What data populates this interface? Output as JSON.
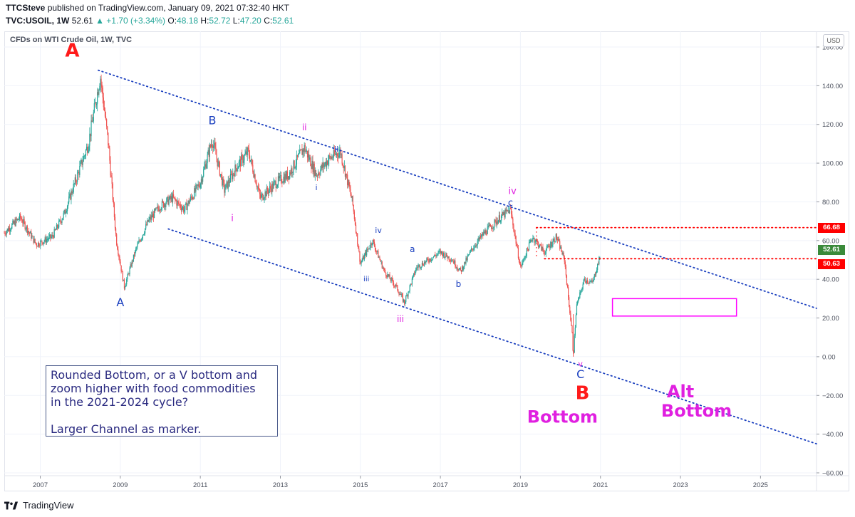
{
  "header": {
    "publisher": "TTCSteve",
    "published_text": "published on TradingView.com, January 09, 2021 07:32:40 HKT",
    "symbol": "TVC:USOIL, 1W",
    "last": "52.61",
    "change": "+1.70 (+3.34%)",
    "open_label": "O:",
    "open": "48.18",
    "high_label": "H:",
    "high": "52.72",
    "low_label": "L:",
    "low": "47.20",
    "close_label": "C:",
    "close": "52.61"
  },
  "chart_title": "CFDs on WTI Crude Oil, 1W, TVC",
  "currency_button": "USD",
  "footer_brand": "TradingView",
  "note": {
    "line1": "Rounded Bottom, or a V bottom and",
    "line2": "zoom higher with food commodities",
    "line3": "in the 2021-2024 cycle?",
    "line4": "Larger Channel as marker."
  },
  "chart_data": {
    "type": "candlestick-line",
    "x_ticks": [
      "2007",
      "2009",
      "2011",
      "2013",
      "2015",
      "2017",
      "2019",
      "2021",
      "2023",
      "2025"
    ],
    "y_ticks": [
      "160.00",
      "140.00",
      "120.00",
      "100.00",
      "80.00",
      "60.00",
      "40.00",
      "20.00",
      "0.00",
      "-20.00",
      "-40.00",
      "-60.00"
    ],
    "ylim": [
      -60,
      160
    ],
    "xlim": [
      2006.1,
      2026.4
    ],
    "price_path": [
      [
        2006.1,
        64
      ],
      [
        2006.5,
        72
      ],
      [
        2006.9,
        58
      ],
      [
        2007.3,
        62
      ],
      [
        2007.6,
        74
      ],
      [
        2007.9,
        92
      ],
      [
        2008.2,
        110
      ],
      [
        2008.5,
        145
      ],
      [
        2008.7,
        110
      ],
      [
        2008.9,
        60
      ],
      [
        2009.1,
        36
      ],
      [
        2009.4,
        56
      ],
      [
        2009.7,
        70
      ],
      [
        2010.0,
        78
      ],
      [
        2010.3,
        82
      ],
      [
        2010.6,
        76
      ],
      [
        2011.0,
        90
      ],
      [
        2011.3,
        112
      ],
      [
        2011.6,
        86
      ],
      [
        2011.9,
        98
      ],
      [
        2012.2,
        106
      ],
      [
        2012.5,
        82
      ],
      [
        2012.9,
        90
      ],
      [
        2013.2,
        94
      ],
      [
        2013.6,
        108
      ],
      [
        2013.9,
        94
      ],
      [
        2014.2,
        102
      ],
      [
        2014.5,
        106
      ],
      [
        2014.8,
        80
      ],
      [
        2015.0,
        48
      ],
      [
        2015.3,
        60
      ],
      [
        2015.6,
        44
      ],
      [
        2015.9,
        36
      ],
      [
        2016.1,
        28
      ],
      [
        2016.4,
        46
      ],
      [
        2016.7,
        50
      ],
      [
        2017.0,
        54
      ],
      [
        2017.3,
        50
      ],
      [
        2017.5,
        44
      ],
      [
        2017.8,
        56
      ],
      [
        2018.1,
        64
      ],
      [
        2018.5,
        72
      ],
      [
        2018.75,
        76
      ],
      [
        2019.0,
        46
      ],
      [
        2019.3,
        62
      ],
      [
        2019.6,
        54
      ],
      [
        2019.9,
        62
      ],
      [
        2020.1,
        50
      ],
      [
        2020.3,
        10
      ],
      [
        2020.32,
        0
      ],
      [
        2020.4,
        26
      ],
      [
        2020.6,
        40
      ],
      [
        2020.8,
        38
      ],
      [
        2021.0,
        52.61
      ]
    ],
    "levels": [
      {
        "label": "66.68",
        "value": 66.68,
        "from": 2019.4,
        "color": "#ff0000"
      },
      {
        "label": "50.63",
        "value": 50.63,
        "from": 2019.6,
        "color": "#ff0000"
      }
    ],
    "last_price_label": "52.61",
    "upper_channel": [
      [
        2008.45,
        148
      ],
      [
        2026.4,
        25
      ]
    ],
    "lower_channel": [
      [
        2010.2,
        66
      ],
      [
        2026.4,
        -45
      ]
    ],
    "target_box": {
      "x0": 2021.3,
      "x1": 2024.4,
      "y0": 21,
      "y1": 30,
      "color": "#ff00ff"
    },
    "annotations": [
      {
        "text": "A",
        "x": 2007.8,
        "y": 155,
        "color": "#ff1a1a",
        "size": 26
      },
      {
        "text": "A",
        "x": 2009.0,
        "y": 26,
        "color": "#1a3fbf",
        "size": 16
      },
      {
        "text": "B",
        "x": 2011.3,
        "y": 120,
        "color": "#1a3fbf",
        "size": 16
      },
      {
        "text": "i",
        "x": 2011.8,
        "y": 70,
        "color": "#e020e0",
        "size": 13
      },
      {
        "text": "ii",
        "x": 2013.6,
        "y": 117,
        "color": "#e020e0",
        "size": 12
      },
      {
        "text": "ii",
        "x": 2014.4,
        "y": 106,
        "color": "#1a3fbf",
        "size": 11
      },
      {
        "text": "i",
        "x": 2013.9,
        "y": 86,
        "color": "#1a3fbf",
        "size": 11
      },
      {
        "text": "iv",
        "x": 2015.45,
        "y": 64,
        "color": "#1a3fbf",
        "size": 11
      },
      {
        "text": "iii",
        "x": 2015.15,
        "y": 39,
        "color": "#1a3fbf",
        "size": 10
      },
      {
        "text": "iii",
        "x": 2016.0,
        "y": 18,
        "color": "#e020e0",
        "size": 12
      },
      {
        "text": "a",
        "x": 2016.3,
        "y": 54,
        "color": "#1a3fbf",
        "size": 12
      },
      {
        "text": "b",
        "x": 2017.45,
        "y": 36,
        "color": "#1a3fbf",
        "size": 12
      },
      {
        "text": "iv",
        "x": 2018.8,
        "y": 84,
        "color": "#e020e0",
        "size": 13
      },
      {
        "text": "c",
        "x": 2018.75,
        "y": 78,
        "color": "#1a3fbf",
        "size": 13
      },
      {
        "text": "v",
        "x": 2020.5,
        "y": -5,
        "color": "#e020e0",
        "size": 11
      },
      {
        "text": "C",
        "x": 2020.5,
        "y": -11,
        "color": "#1a3fbf",
        "size": 16
      },
      {
        "text": "B",
        "x": 2020.55,
        "y": -22,
        "color": "#ff1a1a",
        "size": 26
      },
      {
        "text": "Bottom",
        "x": 2020.05,
        "y": -34,
        "color": "#e020e0",
        "size": 24
      },
      {
        "text": "Alt",
        "x": 2023.0,
        "y": -21,
        "color": "#e020e0",
        "size": 24
      },
      {
        "text": "Bottom",
        "x": 2023.4,
        "y": -31,
        "color": "#e020e0",
        "size": 24
      }
    ]
  }
}
